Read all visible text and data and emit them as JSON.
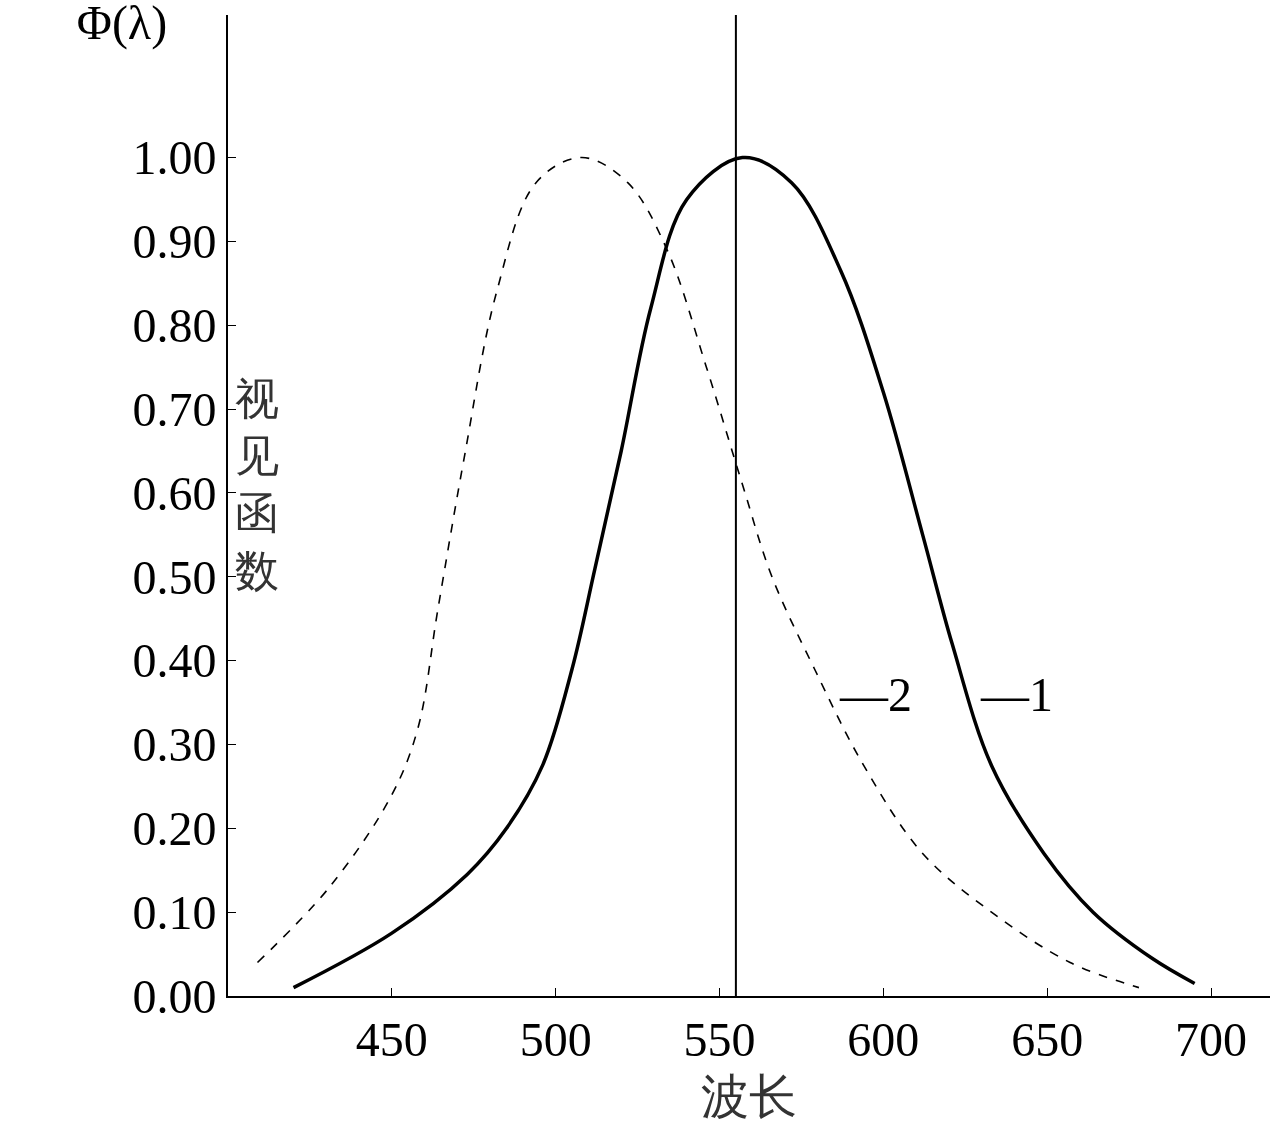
{
  "chart_data": {
    "type": "line",
    "title": "Φ(λ)",
    "xlabel": "波长",
    "ylabel": "视见函数",
    "xlim": [
      400,
      718
    ],
    "ylim": [
      0,
      1.17
    ],
    "xticks": [
      450,
      500,
      550,
      600,
      650,
      700
    ],
    "yticks": [
      {
        "value": 0,
        "label": "0.00"
      },
      {
        "value": 0.1,
        "label": "0.10"
      },
      {
        "value": 0.2,
        "label": "0.20"
      },
      {
        "value": 0.3,
        "label": "0.30"
      },
      {
        "value": 0.4,
        "label": "0.40"
      },
      {
        "value": 0.5,
        "label": "0.50"
      },
      {
        "value": 0.6,
        "label": "0.60"
      },
      {
        "value": 0.7,
        "label": "0.70"
      },
      {
        "value": 0.8,
        "label": "0.80"
      },
      {
        "value": 0.9,
        "label": "0.90"
      },
      {
        "value": 1.0,
        "label": "1.00"
      }
    ],
    "marker": "none",
    "series": [
      {
        "name": "—1",
        "color": "#000000",
        "line_style": "solid",
        "x": [
          420,
          450,
          473,
          485,
          496,
          505,
          512,
          520,
          529,
          540,
          557,
          572,
          587,
          600,
          612,
          621,
          633,
          649,
          664,
          682,
          695
        ],
        "values": [
          0.01,
          0.075,
          0.145,
          0.2,
          0.275,
          0.39,
          0.51,
          0.65,
          0.82,
          0.95,
          1.0,
          0.97,
          0.865,
          0.72,
          0.55,
          0.42,
          0.275,
          0.17,
          0.1,
          0.045,
          0.015
        ]
      },
      {
        "name": "—2",
        "color": "#000000",
        "line_style": "dashed",
        "x": [
          409,
          431,
          450,
          458,
          464,
          472,
          482,
          494,
          508,
          522,
          534,
          546,
          557,
          566,
          579,
          594,
          612,
          633,
          657,
          678
        ],
        "values": [
          0.04,
          0.13,
          0.24,
          0.32,
          0.46,
          0.64,
          0.84,
          0.97,
          1.0,
          0.97,
          0.89,
          0.75,
          0.61,
          0.5,
          0.39,
          0.275,
          0.17,
          0.1,
          0.04,
          0.01
        ]
      }
    ],
    "ref_lines": [
      {
        "axis": "x",
        "value": 555,
        "color": "#000000",
        "line_style": "solid"
      }
    ]
  }
}
